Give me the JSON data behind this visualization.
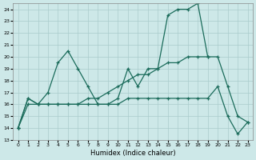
{
  "xlabel": "Humidex (Indice chaleur)",
  "background_color": "#cde8e8",
  "grid_color": "#aacccc",
  "line_color": "#1a6b5a",
  "xlim": [
    -0.5,
    23.5
  ],
  "ylim": [
    13,
    24.5
  ],
  "yticks": [
    13,
    14,
    15,
    16,
    17,
    18,
    19,
    20,
    21,
    22,
    23,
    24
  ],
  "xticks": [
    0,
    1,
    2,
    3,
    4,
    5,
    6,
    7,
    8,
    9,
    10,
    11,
    12,
    13,
    14,
    15,
    16,
    17,
    18,
    19,
    20,
    21,
    22,
    23
  ],
  "s1_x": [
    0,
    1,
    2,
    3,
    4,
    5,
    6,
    7,
    8,
    9,
    10,
    11,
    12,
    13,
    14,
    15,
    16,
    17,
    18,
    19
  ],
  "s1_y": [
    14,
    16.5,
    16,
    17,
    19.5,
    20.5,
    19,
    17.5,
    16,
    16,
    16.5,
    19,
    17.5,
    19,
    19,
    23.5,
    24,
    24,
    24.5,
    20
  ],
  "s2_x": [
    0,
    1,
    2,
    3,
    4,
    5,
    6,
    7,
    8,
    9,
    10,
    11,
    12,
    13,
    14,
    15,
    16,
    17,
    18,
    19,
    20,
    21,
    22,
    23
  ],
  "s2_y": [
    14,
    16,
    16,
    16,
    16,
    16,
    16,
    16.5,
    16.5,
    17,
    17.5,
    18,
    18.5,
    18.5,
    19,
    19.5,
    19.5,
    20,
    20,
    20,
    20,
    17.5,
    15,
    14.5
  ],
  "s3_x": [
    0,
    1,
    2,
    3,
    4,
    5,
    6,
    7,
    8,
    9,
    10,
    11,
    12,
    13,
    14,
    15,
    16,
    17,
    18,
    19,
    20,
    21,
    22,
    23
  ],
  "s3_y": [
    14,
    16.5,
    16,
    16,
    16,
    16,
    16,
    16,
    16,
    16,
    16,
    16.5,
    16.5,
    16.5,
    16.5,
    16.5,
    16.5,
    16.5,
    16.5,
    16.5,
    17.5,
    15,
    13.5,
    14.5
  ]
}
